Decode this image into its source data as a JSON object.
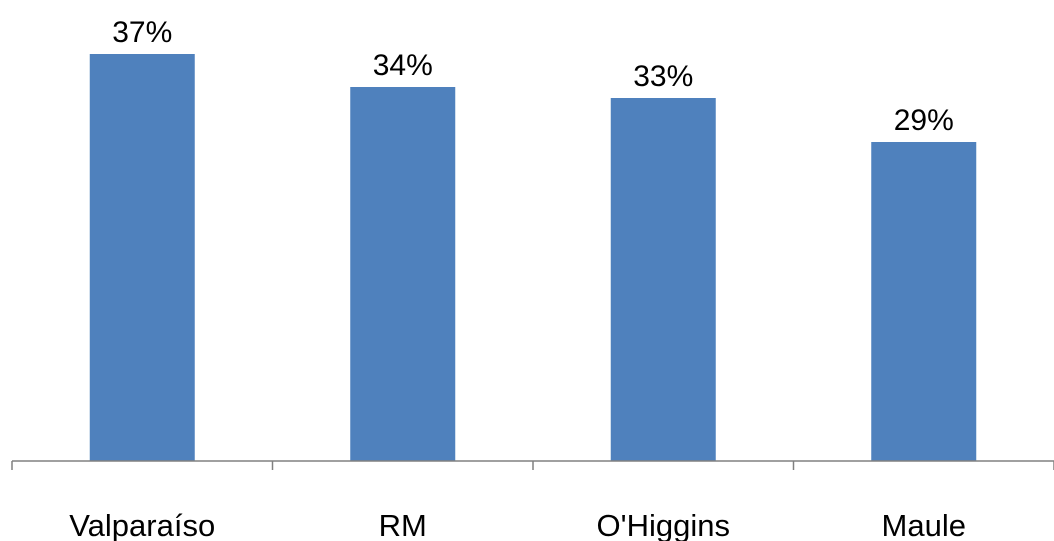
{
  "chart_data": {
    "type": "bar",
    "categories": [
      "Valparaíso",
      "RM",
      "O'Higgins",
      "Maule"
    ],
    "values": [
      37,
      34,
      33,
      29
    ],
    "data_labels": [
      "37%",
      "34%",
      "33%",
      "29%"
    ],
    "title": "",
    "xlabel": "",
    "ylabel": "",
    "ylim": [
      0,
      40
    ],
    "grid": false,
    "legend": "none",
    "bar_color": "#4F81BD",
    "axis_color": "#808080"
  }
}
